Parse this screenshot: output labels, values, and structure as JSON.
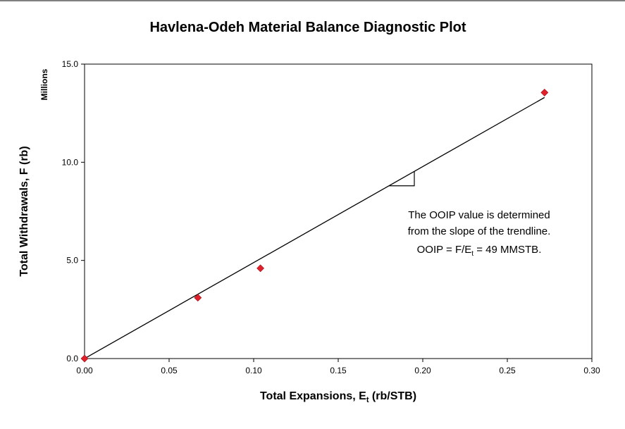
{
  "chart_data": {
    "type": "scatter",
    "title": "Havlena-Odeh Material Balance Diagnostic Plot",
    "xlabel_main": "Total Expansions, E",
    "xlabel_sub": "t",
    "xlabel_tail": " (rb/STB)",
    "ylabel": "Total Withdrawals, F (rb)",
    "y_unit": "Millions",
    "xlim": [
      0,
      0.3
    ],
    "ylim": [
      0,
      15
    ],
    "x_ticks": [
      0.0,
      0.05,
      0.1,
      0.15,
      0.2,
      0.25,
      0.3
    ],
    "x_tick_labels": [
      "0.00",
      "0.05",
      "0.10",
      "0.15",
      "0.20",
      "0.25",
      "0.30"
    ],
    "y_ticks": [
      0,
      5,
      10,
      15
    ],
    "y_tick_labels": [
      "0.0",
      "5.0",
      "10.0",
      "15.0"
    ],
    "grid": false,
    "points": [
      {
        "x": 0.0,
        "y": 0.0
      },
      {
        "x": 0.067,
        "y": 3.1
      },
      {
        "x": 0.104,
        "y": 4.6
      },
      {
        "x": 0.272,
        "y": 13.55
      }
    ],
    "marker_color": "#e0202a",
    "trendline": {
      "x": [
        0.0,
        0.272
      ],
      "y": [
        0.0,
        13.3
      ]
    },
    "annotation": {
      "line1": "The OOIP value is determined",
      "line2": "from the slope of the trendline.",
      "line3_a": "OOIP = F/E",
      "line3_sub": "t",
      "line3_b": " = 49 MMSTB."
    }
  }
}
